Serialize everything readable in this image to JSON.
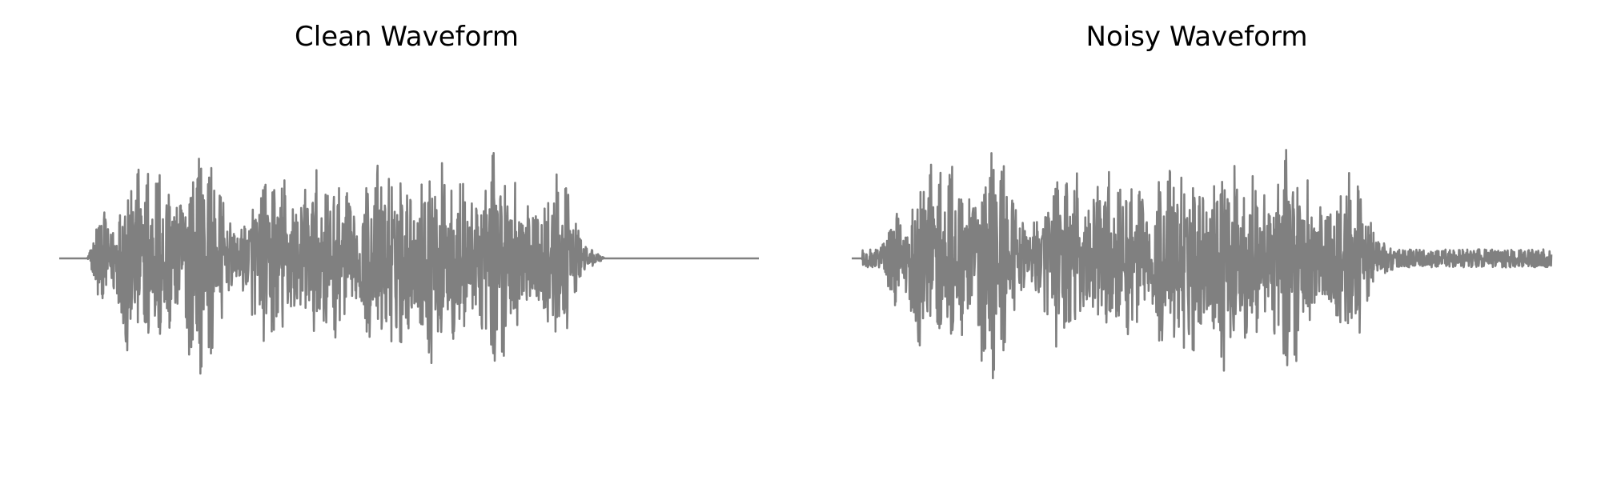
{
  "chart_data": [
    {
      "type": "line",
      "title": "Clean Waveform",
      "xlabel": "",
      "ylabel": "",
      "axes_visible": false,
      "grid": false,
      "ylim": [
        -1,
        1
      ],
      "line_color": "#808080",
      "duration_fraction_active": [
        0.05,
        0.76
      ],
      "envelope": [
        {
          "x": 0.0,
          "y": 0.0
        },
        {
          "x": 0.04,
          "y": 0.0
        },
        {
          "x": 0.05,
          "y": 0.12
        },
        {
          "x": 0.06,
          "y": 0.45
        },
        {
          "x": 0.07,
          "y": 0.25
        },
        {
          "x": 0.095,
          "y": 1.0
        },
        {
          "x": 0.11,
          "y": 0.55
        },
        {
          "x": 0.14,
          "y": 0.6
        },
        {
          "x": 0.18,
          "y": 0.8
        },
        {
          "x": 0.22,
          "y": 0.55
        },
        {
          "x": 0.25,
          "y": 0.3
        },
        {
          "x": 0.3,
          "y": 0.5
        },
        {
          "x": 0.34,
          "y": 0.75
        },
        {
          "x": 0.38,
          "y": 0.45
        },
        {
          "x": 0.43,
          "y": 0.65
        },
        {
          "x": 0.47,
          "y": 0.55
        },
        {
          "x": 0.52,
          "y": 0.82
        },
        {
          "x": 0.56,
          "y": 0.5
        },
        {
          "x": 0.6,
          "y": 0.78
        },
        {
          "x": 0.64,
          "y": 0.55
        },
        {
          "x": 0.68,
          "y": 0.62
        },
        {
          "x": 0.72,
          "y": 0.45
        },
        {
          "x": 0.76,
          "y": 0.05
        },
        {
          "x": 0.78,
          "y": 0.0
        },
        {
          "x": 1.0,
          "y": 0.0
        }
      ],
      "noise_floor": 0.0
    },
    {
      "type": "line",
      "title": "Noisy Waveform",
      "xlabel": "",
      "ylabel": "",
      "axes_visible": false,
      "grid": false,
      "ylim": [
        -1,
        1
      ],
      "line_color": "#808080",
      "duration_fraction_active": [
        0.05,
        0.76
      ],
      "envelope": [
        {
          "x": 0.0,
          "y": 0.0
        },
        {
          "x": 0.04,
          "y": 0.0
        },
        {
          "x": 0.05,
          "y": 0.12
        },
        {
          "x": 0.06,
          "y": 0.45
        },
        {
          "x": 0.07,
          "y": 0.25
        },
        {
          "x": 0.095,
          "y": 1.0
        },
        {
          "x": 0.11,
          "y": 0.55
        },
        {
          "x": 0.14,
          "y": 0.6
        },
        {
          "x": 0.18,
          "y": 0.8
        },
        {
          "x": 0.22,
          "y": 0.55
        },
        {
          "x": 0.25,
          "y": 0.3
        },
        {
          "x": 0.3,
          "y": 0.5
        },
        {
          "x": 0.34,
          "y": 0.75
        },
        {
          "x": 0.38,
          "y": 0.45
        },
        {
          "x": 0.43,
          "y": 0.65
        },
        {
          "x": 0.47,
          "y": 0.55
        },
        {
          "x": 0.52,
          "y": 0.82
        },
        {
          "x": 0.56,
          "y": 0.5
        },
        {
          "x": 0.6,
          "y": 0.78
        },
        {
          "x": 0.64,
          "y": 0.55
        },
        {
          "x": 0.68,
          "y": 0.62
        },
        {
          "x": 0.72,
          "y": 0.45
        },
        {
          "x": 0.76,
          "y": 0.05
        },
        {
          "x": 0.78,
          "y": 0.0
        },
        {
          "x": 1.0,
          "y": 0.0
        }
      ],
      "noise_floor": 0.05
    }
  ]
}
